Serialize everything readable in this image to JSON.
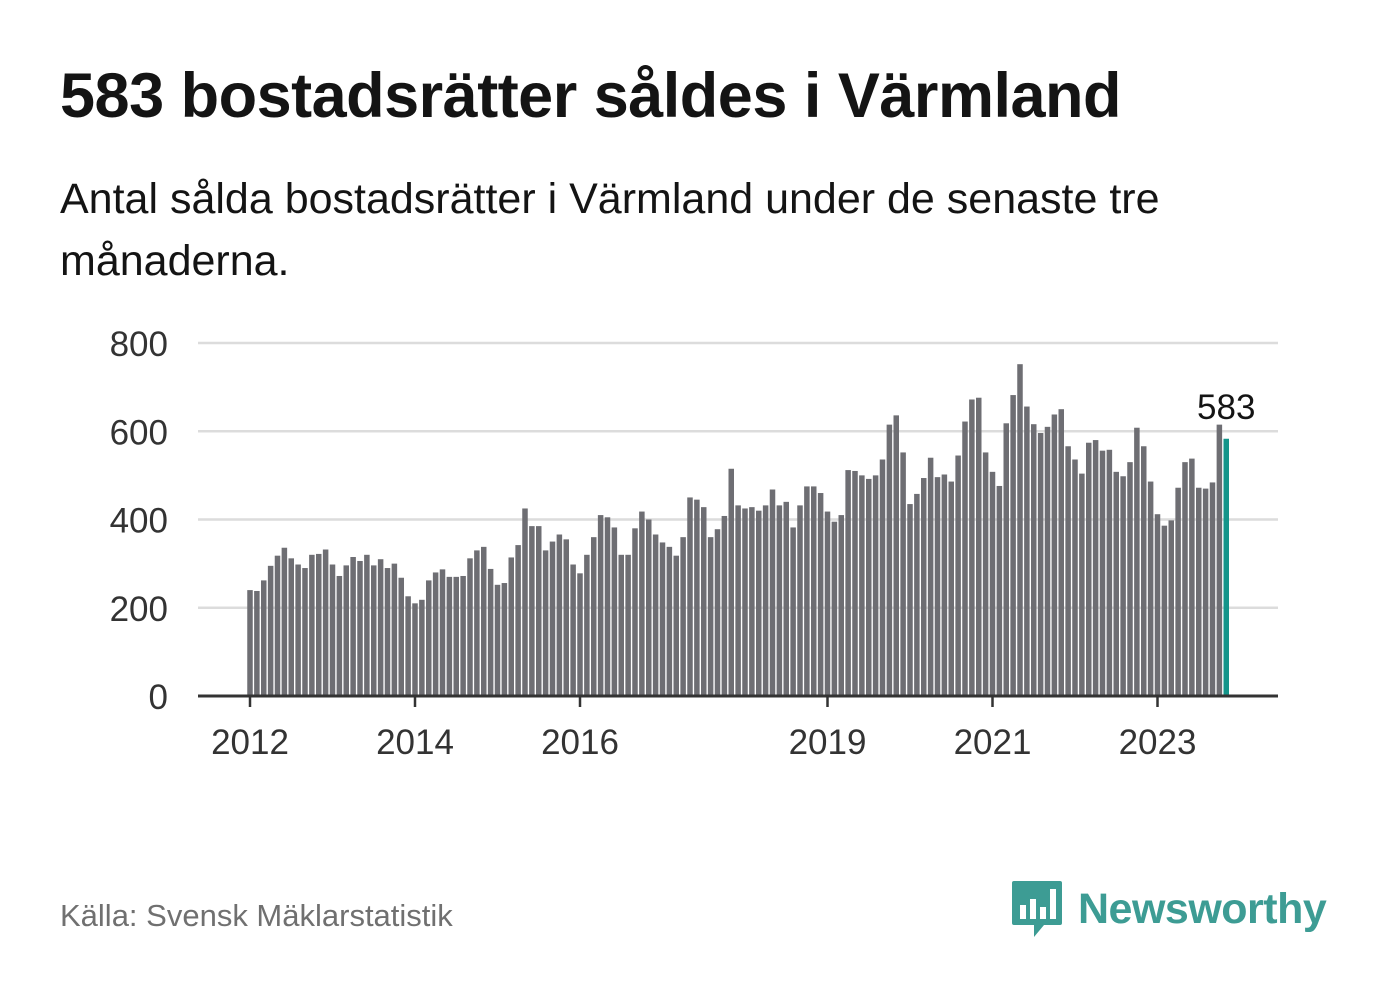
{
  "title": "583 bostadsrätter såldes i Värmland",
  "subtitle": "Antal sålda bostadsrätter i Värmland under de senaste tre månaderna.",
  "source": "Källa: Svensk Mäklarstatistik",
  "brand": {
    "name": "Newsworthy",
    "icon": "newsworthy-logo-icon"
  },
  "colors": {
    "bar": "#6e6e73",
    "highlight": "#14958a",
    "grid": "#dcdcdc",
    "axis": "#333333",
    "brand": "#3d9c94"
  },
  "chart_data": {
    "type": "bar",
    "title": "",
    "xlabel": "",
    "ylabel": "",
    "ylim": [
      0,
      800
    ],
    "yticks": [
      0,
      200,
      400,
      600,
      800
    ],
    "x_start": "2012-01",
    "xticks": [
      {
        "label": "2012",
        "month_index": 0
      },
      {
        "label": "2014",
        "month_index": 24
      },
      {
        "label": "2016",
        "month_index": 48
      },
      {
        "label": "2019",
        "month_index": 84
      },
      {
        "label": "2021",
        "month_index": 108
      },
      {
        "label": "2023",
        "month_index": 132
      }
    ],
    "grid": true,
    "highlight_label": "583",
    "values": [
      240,
      238,
      262,
      295,
      318,
      336,
      312,
      298,
      290,
      320,
      322,
      332,
      298,
      272,
      296,
      315,
      306,
      320,
      296,
      310,
      290,
      300,
      268,
      226,
      210,
      218,
      262,
      280,
      287,
      270,
      270,
      272,
      312,
      330,
      338,
      288,
      252,
      256,
      314,
      342,
      425,
      385,
      385,
      330,
      350,
      366,
      355,
      298,
      278,
      320,
      360,
      410,
      405,
      382,
      320,
      320,
      380,
      418,
      400,
      366,
      348,
      338,
      318,
      360,
      450,
      445,
      428,
      360,
      378,
      408,
      515,
      432,
      425,
      428,
      420,
      432,
      468,
      432,
      440,
      382,
      432,
      475,
      475,
      460,
      418,
      395,
      410,
      512,
      510,
      500,
      492,
      500,
      536,
      615,
      636,
      552,
      435,
      458,
      494,
      540,
      496,
      502,
      486,
      545,
      622,
      672,
      676,
      552,
      508,
      476,
      618,
      682,
      752,
      656,
      616,
      596,
      610,
      638,
      650,
      566,
      536,
      504,
      574,
      580,
      556,
      558,
      508,
      498,
      530,
      608,
      566,
      486,
      412,
      386,
      398,
      472,
      530,
      538,
      472,
      470,
      484,
      615,
      583
    ]
  }
}
